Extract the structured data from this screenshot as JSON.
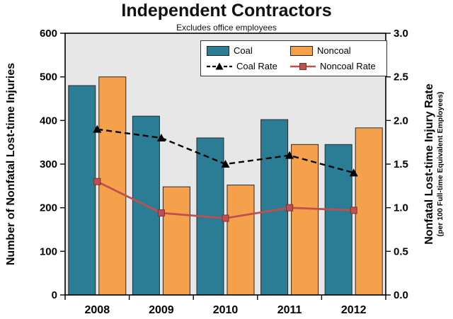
{
  "chart_data": {
    "type": "bar",
    "title": "Independent Contractors",
    "subtitle": "Excludes office employees",
    "categories": [
      "2008",
      "2009",
      "2010",
      "2011",
      "2012"
    ],
    "bar_series": [
      {
        "name": "Coal",
        "color": "#2b7d95",
        "values": [
          480,
          410,
          360,
          402,
          345
        ]
      },
      {
        "name": "Noncoal",
        "color": "#f5a14b",
        "values": [
          500,
          248,
          252,
          345,
          383
        ]
      }
    ],
    "line_series": [
      {
        "name": "Coal Rate",
        "color": "#000000",
        "dash": true,
        "marker": "triangle",
        "values": [
          1.9,
          1.8,
          1.5,
          1.6,
          1.4
        ]
      },
      {
        "name": "Noncoal Rate",
        "color": "#c0504d",
        "dash": false,
        "marker": "square",
        "values": [
          1.3,
          0.94,
          0.88,
          1.0,
          0.97
        ]
      }
    ],
    "left_axis": {
      "label": "Number of Nonfatal Lost-time Injuries",
      "min": 0,
      "max": 600,
      "step": 100
    },
    "right_axis": {
      "label": "Nonfatal Lost-time Injury Rate",
      "sublabel": "(per 100 Full-time Equivalent Employees)",
      "min": 0,
      "max": 3.0,
      "step": 0.5
    },
    "plot_bg": "#e7e7e7",
    "legend_position": "top-right-inside",
    "grid": false
  }
}
